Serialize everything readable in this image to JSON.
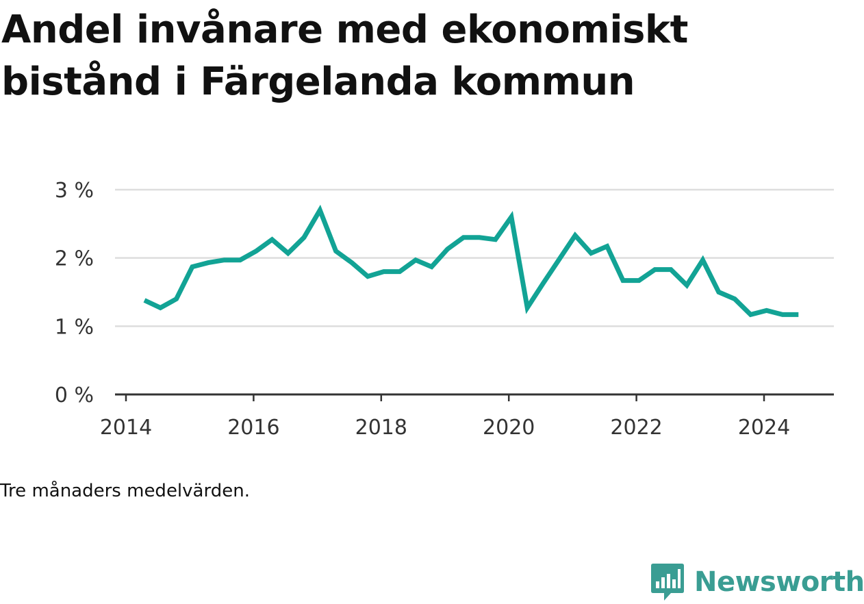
{
  "title": "Andel invånare med ekonomiskt bistånd i Färgelanda kommun",
  "note": "Tre månaders medelvärden.",
  "brand": {
    "name": "Newsworthy",
    "color": "#3a9d93"
  },
  "chart_data": {
    "type": "line",
    "title": "Andel invånare med ekonomiskt bistånd i Färgelanda kommun",
    "xlabel": "",
    "ylabel": "",
    "line_color": "#12a395",
    "grid": true,
    "ylim": [
      0,
      3
    ],
    "xlim": [
      2014.0,
      2025.2
    ],
    "y_ticks": [
      0,
      1,
      2,
      3
    ],
    "y_tick_labels": [
      "0 %",
      "1 %",
      "2 %",
      "3 %"
    ],
    "x_ticks": [
      2014,
      2016,
      2018,
      2020,
      2022,
      2024
    ],
    "x_tick_labels": [
      "2014",
      "2016",
      "2018",
      "2020",
      "2022",
      "2024"
    ],
    "series": [
      {
        "x": [
          2014.29,
          2014.54,
          2014.79,
          2015.04,
          2015.29,
          2015.54,
          2015.79,
          2016.04,
          2016.29,
          2016.54,
          2016.79,
          2017.04,
          2017.29,
          2017.54,
          2017.79,
          2018.04,
          2018.29,
          2018.54,
          2018.79,
          2019.04,
          2019.29,
          2019.54,
          2019.79,
          2020.04,
          2020.29,
          2020.54,
          2020.79,
          2021.04,
          2021.29,
          2021.54,
          2021.79,
          2022.04,
          2022.29,
          2022.54,
          2022.79,
          2023.04,
          2023.29,
          2023.54,
          2023.79,
          2024.04,
          2024.29,
          2024.54
        ],
        "values": [
          1.38,
          1.27,
          1.4,
          1.87,
          1.93,
          1.97,
          1.97,
          2.1,
          2.27,
          2.07,
          2.3,
          2.7,
          2.1,
          1.93,
          1.73,
          1.8,
          1.8,
          1.97,
          1.87,
          2.13,
          2.3,
          2.3,
          2.27,
          2.6,
          1.27,
          1.63,
          1.98,
          2.33,
          2.07,
          2.17,
          1.67,
          1.67,
          1.83,
          1.83,
          1.6,
          1.97,
          1.5,
          1.4,
          1.17,
          1.23,
          1.17,
          1.17
        ]
      }
    ]
  }
}
